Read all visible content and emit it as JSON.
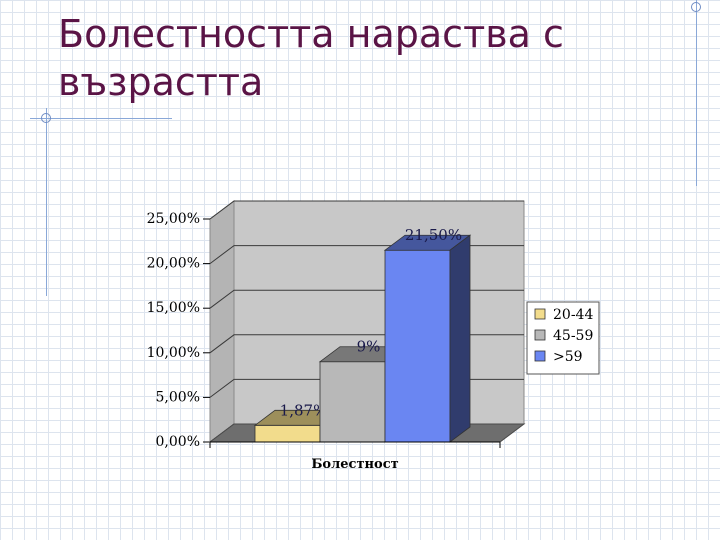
{
  "slide": {
    "title_line1": "Болестността нараства с",
    "title_line2": "възрастта"
  },
  "chart_data": {
    "type": "bar",
    "style": "3d",
    "categories": [
      "Болестност"
    ],
    "series": [
      {
        "name": "20-44",
        "value": 1.87,
        "label": "1,87%",
        "color": "#f2dc8c"
      },
      {
        "name": "45-59",
        "value": 9.0,
        "label": "9%",
        "color": "#b8b8b8"
      },
      {
        "name": ">59",
        "value": 21.5,
        "label": "21,50%",
        "color": "#6a86f2"
      }
    ],
    "yticks": [
      {
        "value": 0,
        "label": "0,00%"
      },
      {
        "value": 5,
        "label": "5,00%"
      },
      {
        "value": 10,
        "label": "10,00%"
      },
      {
        "value": 15,
        "label": "15,00%"
      },
      {
        "value": 20,
        "label": "20,00%"
      },
      {
        "value": 25,
        "label": "25,00%"
      }
    ],
    "xlabel": "Болестност",
    "ylim": [
      0,
      25
    ],
    "grid": true,
    "legend_position": "right",
    "wall_color": "#c8c8c8",
    "floor_color": "#6e6e6e"
  }
}
